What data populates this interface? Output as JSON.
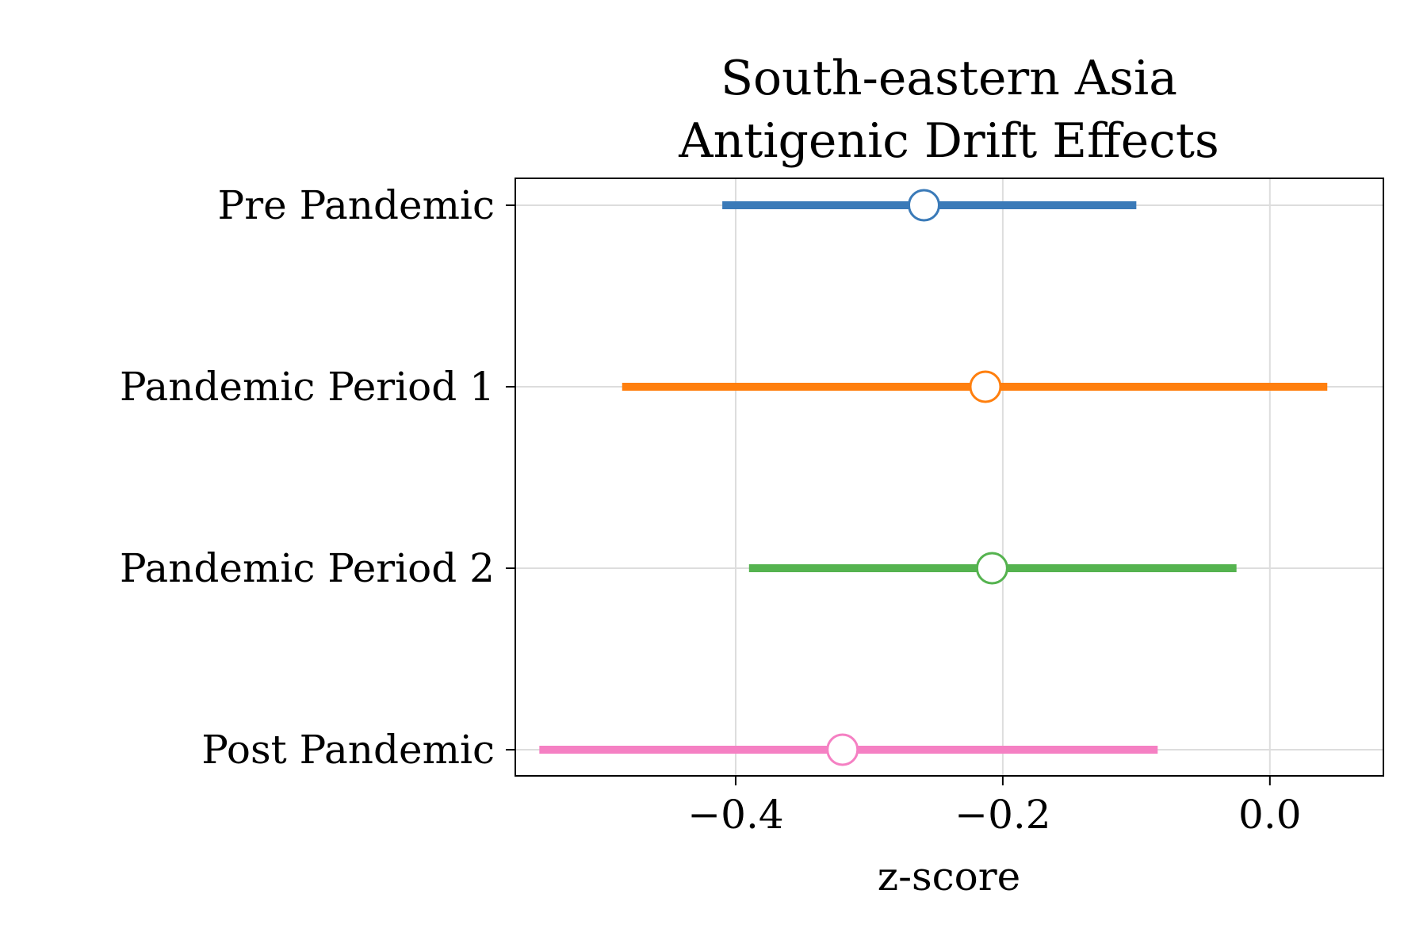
{
  "chart_data": {
    "type": "forest",
    "title_lines": [
      "South-eastern Asia",
      "Antigenic Drift Effects"
    ],
    "xlabel": "z-score",
    "xlim": [
      -0.565,
      0.085
    ],
    "xticks": [
      {
        "value": -0.4,
        "label": "−0.4"
      },
      {
        "value": -0.2,
        "label": "−0.2"
      },
      {
        "value": 0.0,
        "label": "0.0"
      }
    ],
    "grid": true,
    "series": [
      {
        "name": "Pre Pandemic",
        "estimate": -0.259,
        "lower": -0.41,
        "upper": -0.1,
        "color": "#3a7ab8"
      },
      {
        "name": "Pandemic Period 1",
        "estimate": -0.213,
        "lower": -0.485,
        "upper": 0.043,
        "color": "#ff7f0e"
      },
      {
        "name": "Pandemic Period 2",
        "estimate": -0.208,
        "lower": -0.39,
        "upper": -0.025,
        "color": "#55b34f"
      },
      {
        "name": "Post Pandemic",
        "estimate": -0.32,
        "lower": -0.547,
        "upper": -0.084,
        "color": "#f580c3"
      }
    ]
  }
}
